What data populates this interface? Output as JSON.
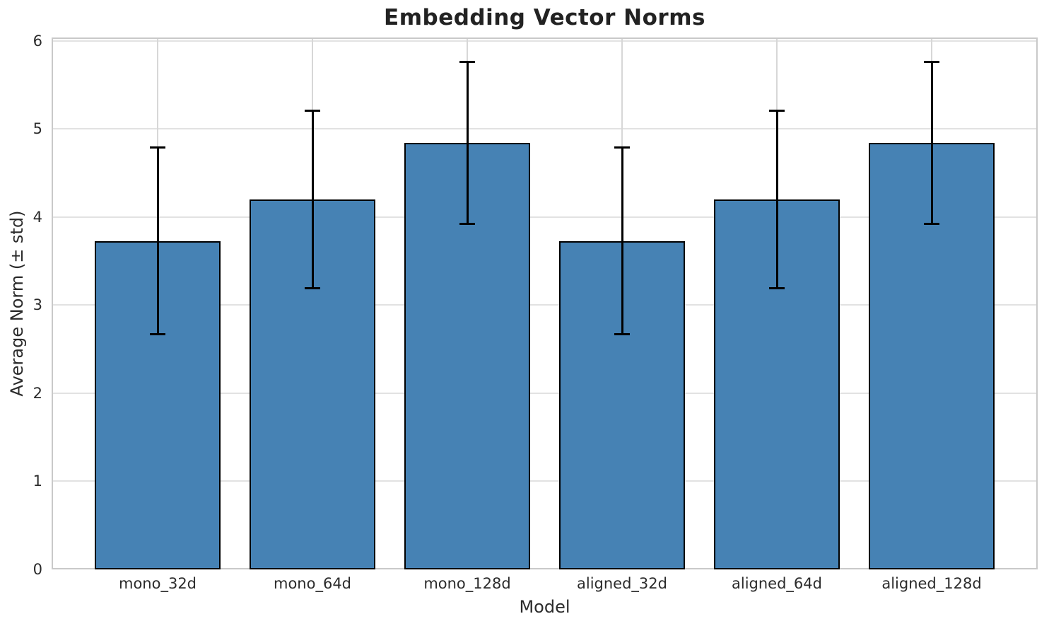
{
  "chart_data": {
    "type": "bar",
    "title": "Embedding Vector Norms",
    "xlabel": "Model",
    "ylabel": "Average Norm (± std)",
    "categories": [
      "mono_32d",
      "mono_64d",
      "mono_128d",
      "aligned_32d",
      "aligned_64d",
      "aligned_128d"
    ],
    "series": [
      {
        "name": "Average Norm",
        "values": [
          3.73,
          4.2,
          4.84,
          3.73,
          4.2,
          4.84
        ],
        "errors": [
          1.06,
          1.01,
          0.92,
          1.06,
          1.01,
          0.92
        ]
      }
    ],
    "ylim": [
      0,
      6.04
    ],
    "yticks": [
      0,
      1,
      2,
      3,
      4,
      5,
      6
    ],
    "grid": "both",
    "legend": "none",
    "error_bars": "±1 std with caps",
    "colors": {
      "bar_fill": "#4682B4",
      "bar_edge": "#000000",
      "error_bar": "#000000",
      "grid": "#e0e0e0",
      "spine": "#c9c9c9",
      "text": "#2b2b2b",
      "title_text": "#222222",
      "background": "#ffffff"
    }
  }
}
